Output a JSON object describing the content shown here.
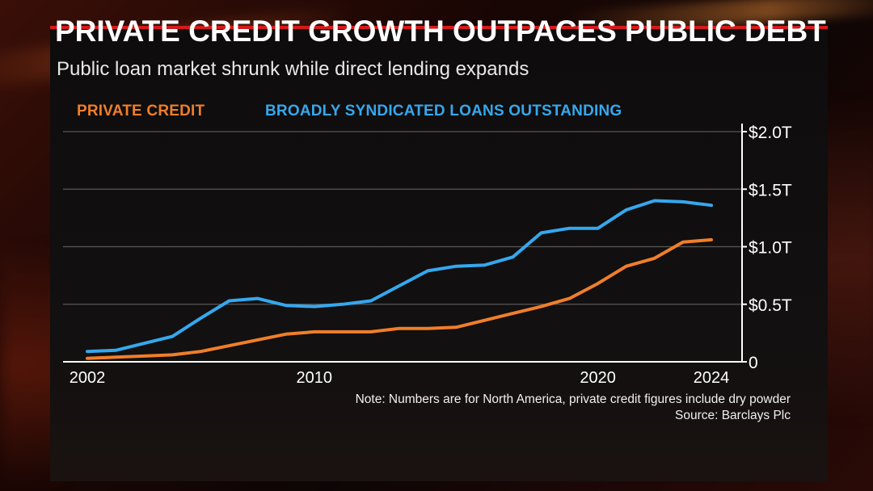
{
  "header": {
    "title": "PRIVATE CREDIT GROWTH OUTPACES PUBLIC DEBT",
    "subtitle": "Public loan market shrunk while direct lending expands"
  },
  "legend": {
    "private_credit": "PRIVATE CREDIT",
    "bsl": "BROADLY SYNDICATED LOANS OUTSTANDING"
  },
  "footer": {
    "note": "Note: Numbers are for North America, private credit figures include dry powder",
    "source": "Source: Barclays Plc"
  },
  "colors": {
    "private_credit": "#f07e2a",
    "bsl": "#35a8ee",
    "accent": "#d8191b"
  },
  "chart_data": {
    "type": "line",
    "x": [
      2002,
      2003,
      2004,
      2005,
      2006,
      2007,
      2008,
      2009,
      2010,
      2011,
      2012,
      2013,
      2014,
      2015,
      2016,
      2017,
      2018,
      2019,
      2020,
      2021,
      2022,
      2023,
      2024
    ],
    "series": [
      {
        "name": "PRIVATE CREDIT",
        "color": "#f07e2a",
        "values": [
          0.03,
          0.04,
          0.05,
          0.06,
          0.09,
          0.14,
          0.19,
          0.24,
          0.26,
          0.26,
          0.26,
          0.29,
          0.29,
          0.3,
          0.36,
          0.42,
          0.48,
          0.55,
          0.68,
          0.83,
          0.9,
          1.04,
          1.06
        ]
      },
      {
        "name": "BROADLY SYNDICATED LOANS OUTSTANDING",
        "color": "#35a8ee",
        "values": [
          0.09,
          0.1,
          0.16,
          0.22,
          0.38,
          0.53,
          0.55,
          0.49,
          0.48,
          0.5,
          0.53,
          0.66,
          0.79,
          0.83,
          0.84,
          0.91,
          1.12,
          1.16,
          1.16,
          1.32,
          1.4,
          1.39,
          1.36
        ]
      }
    ],
    "x_ticks": [
      "2002",
      "2010",
      "2020",
      "2024"
    ],
    "x_tick_values": [
      2002,
      2010,
      2020,
      2024
    ],
    "y_ticks": [
      "0",
      "$0.5T",
      "$1.0T",
      "$1.5T",
      "$2.0T"
    ],
    "y_tick_values": [
      0,
      0.5,
      1.0,
      1.5,
      2.0
    ],
    "ylim": [
      0,
      2.0
    ],
    "xlim": [
      2002,
      2024
    ],
    "grid": true,
    "y_axis_side": "right",
    "legend_position": "top-left"
  }
}
